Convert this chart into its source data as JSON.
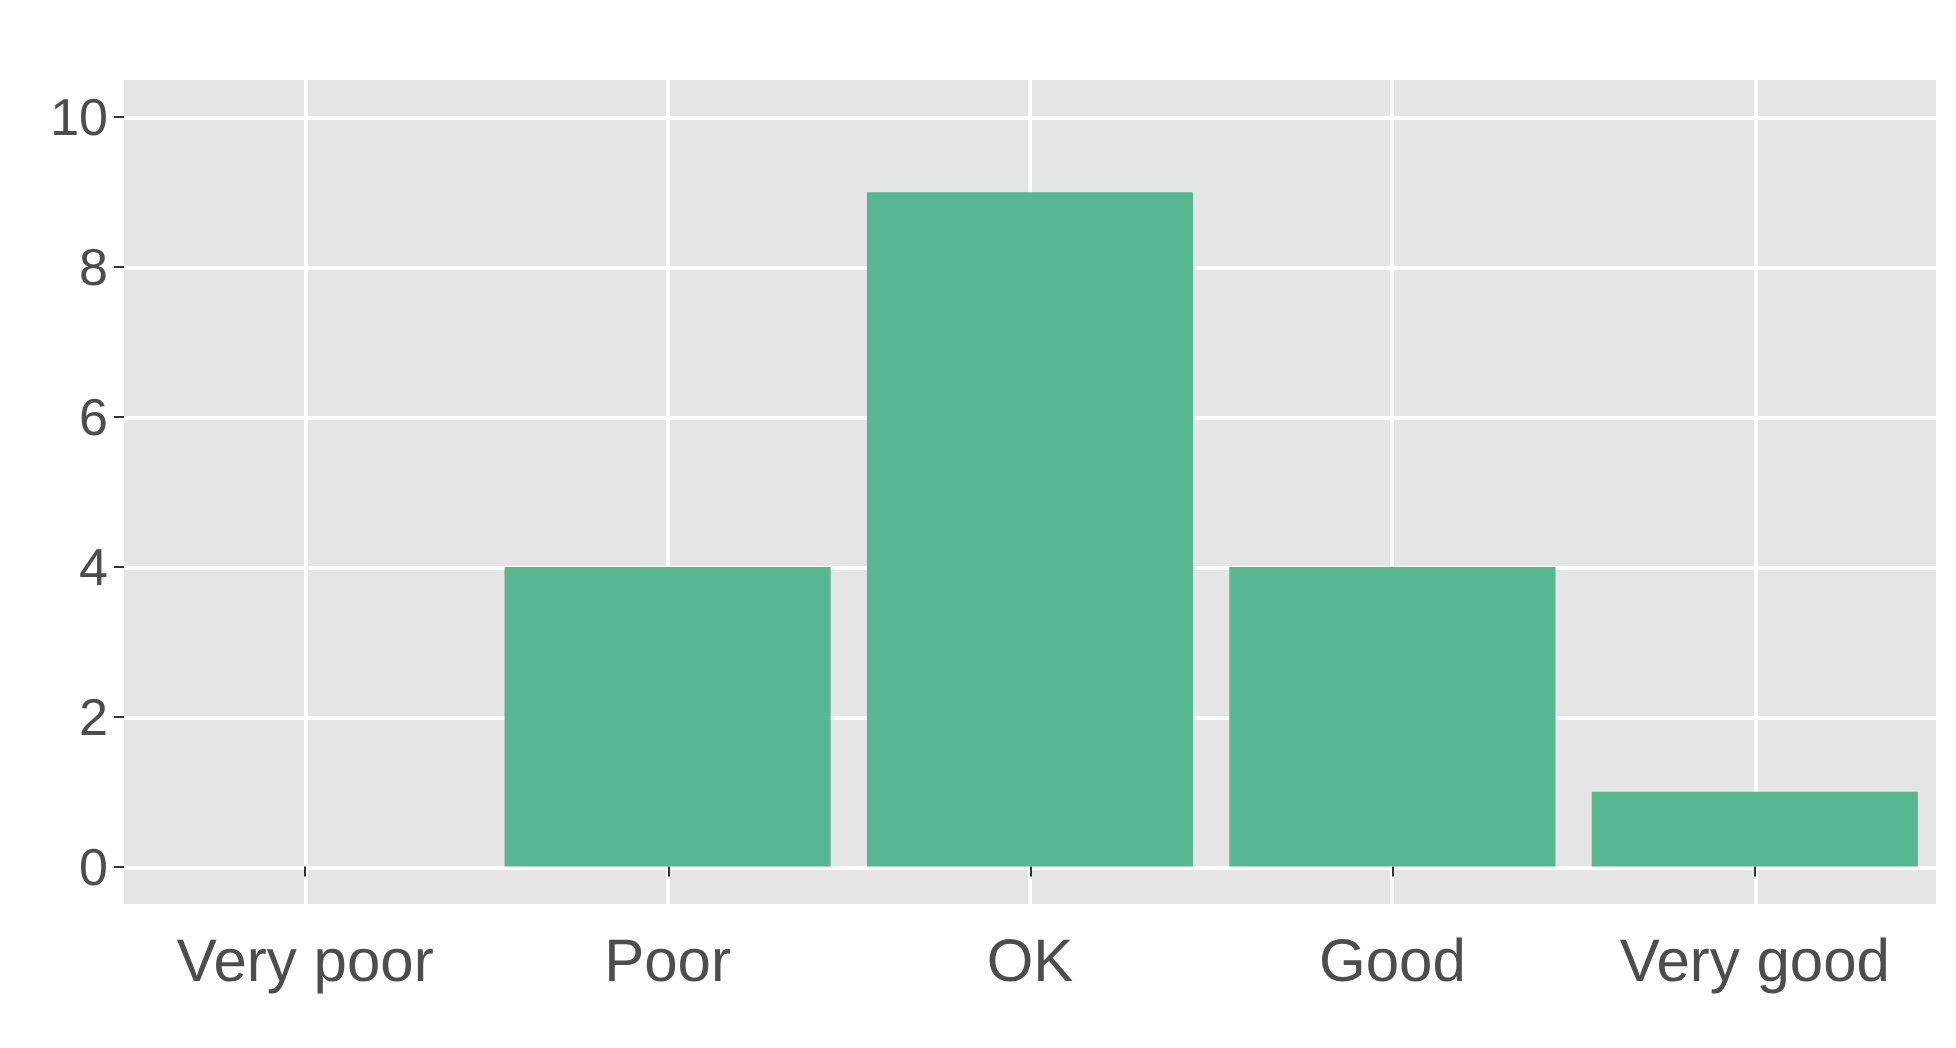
{
  "chart_data": {
    "type": "bar",
    "categories": [
      "Very poor",
      "Poor",
      "OK",
      "Good",
      "Very good"
    ],
    "values": [
      0,
      4,
      9,
      4,
      1
    ],
    "color": "#55b893",
    "ylim": [
      -0.5,
      10.5
    ],
    "yticks": [
      0,
      2,
      4,
      6,
      8,
      10
    ],
    "grid": true
  }
}
